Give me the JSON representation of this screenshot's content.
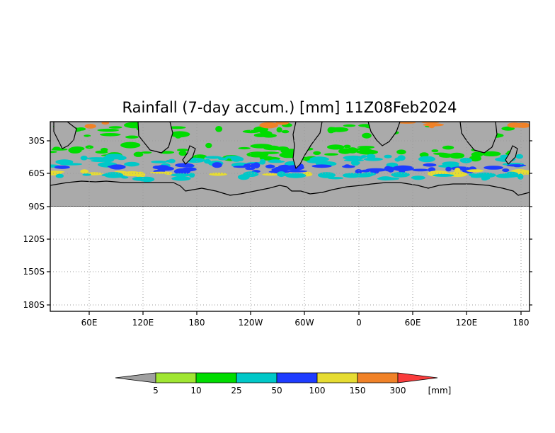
{
  "title": "Rainfall (7-day accum.) [mm] 11Z08Feb2024",
  "map": {
    "lat_ticks": [
      "30S",
      "60S",
      "90S",
      "120S",
      "150S",
      "180S"
    ],
    "lon_ticks": [
      "60E",
      "120E",
      "180",
      "120W",
      "60W",
      "0",
      "60E",
      "120E",
      "180"
    ],
    "colors": {
      "no_data_gray": "#aaaaaa",
      "border": "#000000",
      "grid": "#9a9a9a"
    }
  },
  "legend": {
    "unit": "[mm]",
    "thresholds": [
      "5",
      "10",
      "25",
      "50",
      "100",
      "150",
      "300"
    ],
    "colors": [
      "#a0a0a0",
      "#a0e632",
      "#00dc00",
      "#00c8c8",
      "#1e3cff",
      "#e6dc32",
      "#f08228",
      "#fa3c3c"
    ]
  }
}
